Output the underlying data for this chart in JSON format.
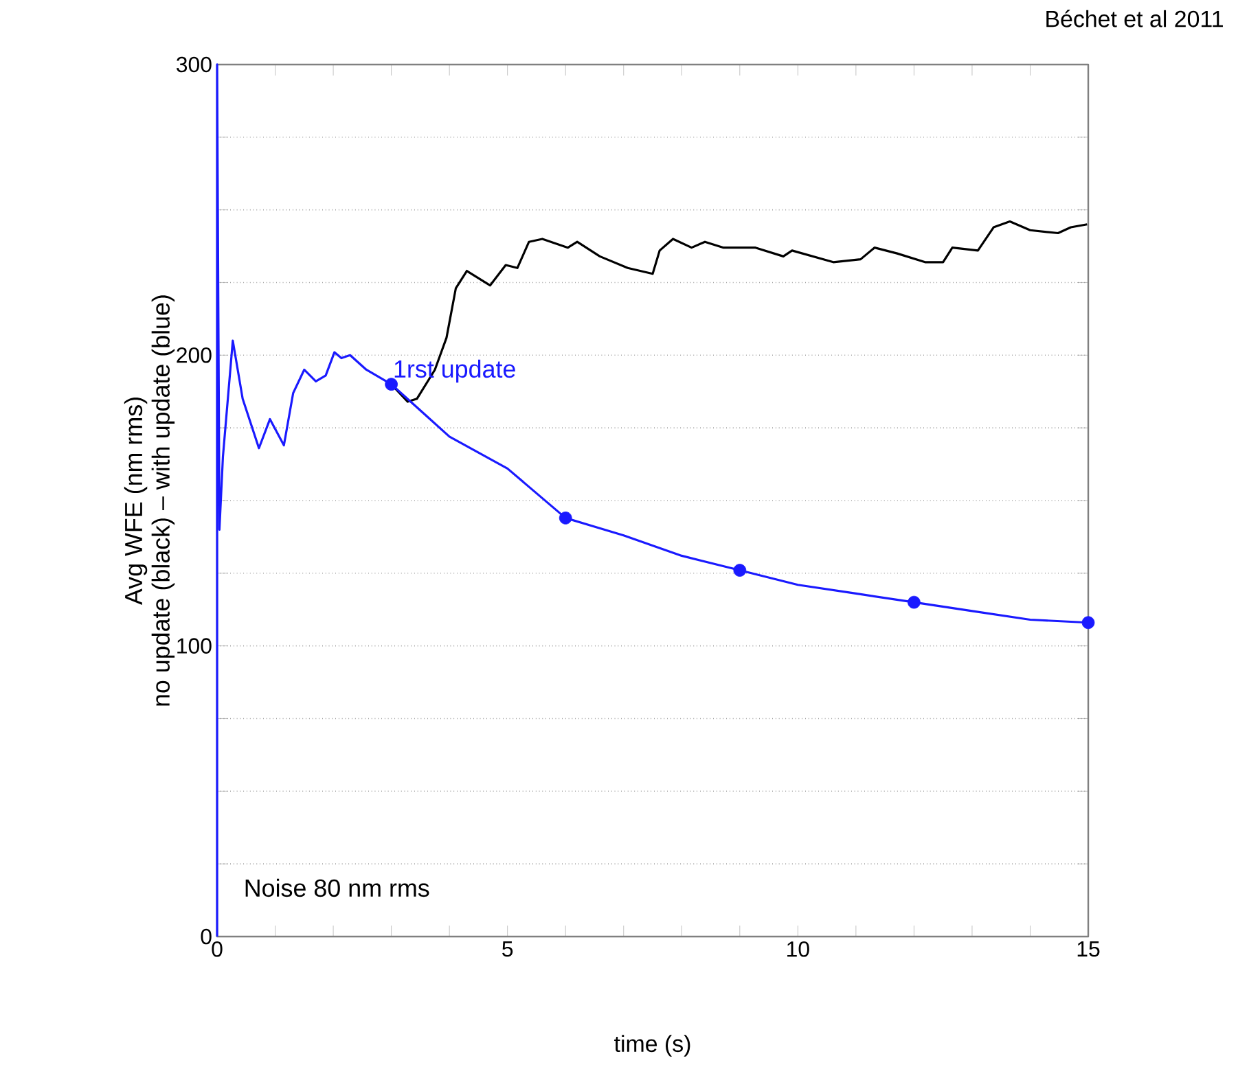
{
  "chart_data": {
    "type": "line",
    "xlabel": "time (s)",
    "ylabel": "Avg WFE (nm rms)\nno update (black) – with update (blue)",
    "xlim": [
      0,
      15
    ],
    "ylim": [
      0,
      300
    ],
    "xticks": [
      0,
      {
        "value": 1,
        "label": null
      },
      {
        "value": 2,
        "label": null
      },
      {
        "value": 3,
        "label": null
      },
      {
        "value": 4,
        "label": null
      },
      5,
      {
        "value": 6,
        "label": null
      },
      {
        "value": 7,
        "label": null
      },
      {
        "value": 8,
        "label": null
      },
      {
        "value": 9,
        "label": null
      },
      10,
      {
        "value": 11,
        "label": null
      },
      {
        "value": 12,
        "label": null
      },
      {
        "value": 13,
        "label": null
      },
      {
        "value": 14,
        "label": null
      },
      15
    ],
    "yticks": [
      0,
      {
        "value": 25,
        "label": null
      },
      {
        "value": 50,
        "label": null
      },
      {
        "value": 75,
        "label": null
      },
      100,
      {
        "value": 125,
        "label": null
      },
      {
        "value": 150,
        "label": null
      },
      {
        "value": 175,
        "label": null
      },
      200,
      {
        "value": 225,
        "label": null
      },
      {
        "value": 250,
        "label": null
      },
      {
        "value": 275,
        "label": null
      },
      300
    ],
    "grid": "y",
    "series": [
      {
        "color": "#000000",
        "marker": "none",
        "x": [
          3.0,
          3.28,
          3.44,
          3.75,
          3.95,
          4.11,
          4.3,
          4.7,
          4.97,
          5.17,
          5.37,
          5.6,
          6.04,
          6.2,
          6.59,
          7.07,
          7.5,
          7.62,
          7.85,
          8.17,
          8.4,
          8.72,
          9.27,
          9.75,
          9.9,
          10.61,
          11.08,
          11.32,
          11.71,
          12.19,
          12.5,
          12.66,
          13.1,
          13.37,
          13.65,
          14.0,
          14.48,
          14.7,
          14.98
        ],
        "values": [
          190,
          184,
          185,
          195,
          206,
          223,
          229,
          224,
          231,
          230,
          239,
          240,
          237,
          239,
          234,
          230,
          228,
          236,
          240,
          237,
          239,
          237,
          237,
          234,
          236,
          232,
          233,
          237,
          235,
          232,
          232,
          237,
          236,
          244,
          246,
          243,
          242,
          244,
          245
        ]
      },
      {
        "color": "#1a1aff",
        "marker": "none",
        "x": [
          0,
          0,
          0.04,
          0.1,
          0.27,
          0.44,
          0.72,
          0.91,
          1.15,
          1.31,
          1.5,
          1.7,
          1.87,
          2.02,
          2.14,
          2.29,
          2.57,
          3.0,
          3.5,
          4,
          5,
          6,
          7,
          8,
          9,
          10,
          11,
          12,
          13,
          14,
          15
        ],
        "values": [
          0,
          300,
          140,
          165,
          205,
          185,
          168,
          178,
          169,
          187,
          195,
          191,
          193,
          201,
          199,
          200,
          195,
          190,
          181,
          172,
          161,
          144,
          138,
          131,
          126,
          121,
          118,
          115,
          112,
          109,
          108
        ]
      },
      {
        "type": "scatter",
        "color": "#1a1aff",
        "marker": "circle",
        "x": [
          3,
          6,
          9,
          12,
          15
        ],
        "values": [
          190,
          144,
          126,
          115,
          108
        ]
      }
    ],
    "annotations": [
      {
        "text": "1rst update",
        "x": 3,
        "y": 190
      },
      "Noise 80 nm rms",
      "Béchet et al 2011"
    ]
  }
}
